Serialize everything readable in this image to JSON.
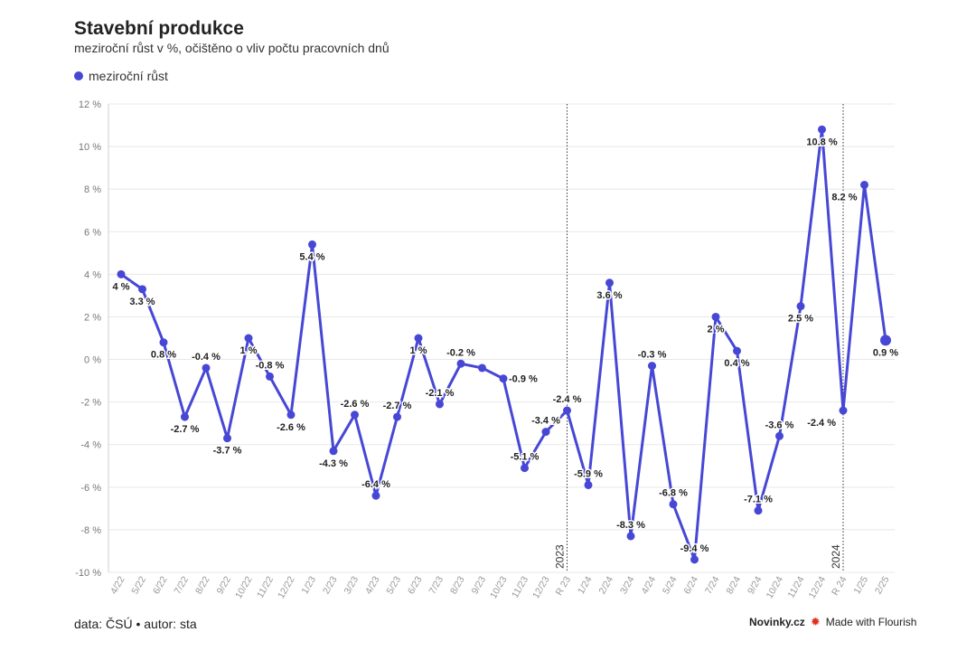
{
  "header": {
    "title": "Stavební produkce",
    "subtitle": "meziroční růst v %, očištěno o vliv počtu pracovních dnů"
  },
  "legend": {
    "label": "meziroční růst",
    "color": "#4747d6"
  },
  "footer": {
    "source": "data: ČSÚ • autor: sta",
    "brand": "Novinky.cz",
    "made_with": "Made with Flourish",
    "flourish_icon": "flourish-logo-icon"
  },
  "chart_data": {
    "type": "line",
    "series": [
      {
        "name": "meziroční růst",
        "color": "#4747d6"
      }
    ],
    "categories": [
      "4/22",
      "5/22",
      "6/22",
      "7/22",
      "8/22",
      "9/22",
      "10/22",
      "11/22",
      "12/22",
      "1/23",
      "2/23",
      "3/23",
      "4/23",
      "5/23",
      "6/23",
      "7/23",
      "8/23",
      "9/23",
      "10/23",
      "11/23",
      "12/23",
      "R 23",
      "1/24",
      "2/24",
      "3/24",
      "4/24",
      "5/24",
      "6/24",
      "7/24",
      "8/24",
      "9/24",
      "10/24",
      "11/24",
      "12/24",
      "R 24",
      "1/25",
      "2/25"
    ],
    "values": [
      4,
      3.3,
      0.8,
      -2.7,
      -0.4,
      -3.7,
      1,
      -0.8,
      -2.6,
      5.4,
      -4.3,
      -2.6,
      -6.4,
      -2.7,
      1,
      -2.1,
      -0.2,
      -0.4,
      -0.9,
      -5.1,
      -3.4,
      -2.4,
      -5.9,
      3.6,
      -8.3,
      -0.3,
      -6.8,
      -9.4,
      2,
      0.4,
      -7.1,
      -3.6,
      2.5,
      10.8,
      -2.4,
      8.2,
      0.9
    ],
    "data_labels": [
      "4 %",
      "3.3 %",
      "0.8 %",
      "-2.7 %",
      "-0.4 %",
      "-3.7 %",
      "1 %",
      "-0.8 %",
      "-2.6 %",
      "5.4 %",
      "-4.3 %",
      "-2.6 %",
      "-6.4 %",
      "-2.7 %",
      "1 %",
      "-2.1 %",
      "-0.2 %",
      "",
      "-0.9 %",
      "-5.1 %",
      "-3.4 %",
      "-2.4 %",
      "-5.9 %",
      "3.6 %",
      "-8.3 %",
      "-0.3 %",
      "-6.8 %",
      "-9.4 %",
      "2 %",
      "0.4 %",
      "-7.1 %",
      "-3.6 %",
      "2.5 %",
      "10.8 %",
      "-2.4 %",
      "8.2 %",
      "0.9 %"
    ],
    "label_positions": [
      "below",
      "below",
      "below",
      "below",
      "above",
      "below",
      "below",
      "above",
      "below",
      "below",
      "below",
      "above",
      "above",
      "above",
      "below",
      "above",
      "above",
      "",
      "right",
      "above",
      "above",
      "above",
      "above",
      "below",
      "above",
      "above",
      "above",
      "above",
      "below",
      "below",
      "above",
      "above",
      "below",
      "below",
      "left",
      "left",
      "below"
    ],
    "y_ticks": [
      12,
      10,
      8,
      6,
      4,
      2,
      0,
      -2,
      -4,
      -6,
      -8,
      -10
    ],
    "y_tick_labels": [
      "12 %",
      "10 %",
      "8 %",
      "6 %",
      "4 %",
      "2 %",
      "0 %",
      "-2 %",
      "-4 %",
      "-6 %",
      "-8 %",
      "-10 %"
    ],
    "ylim": [
      -10,
      12
    ],
    "grid": true,
    "annotations": [
      {
        "label": "2023",
        "at_category": "R 23"
      },
      {
        "label": "2024",
        "at_category": "R 24"
      }
    ]
  }
}
